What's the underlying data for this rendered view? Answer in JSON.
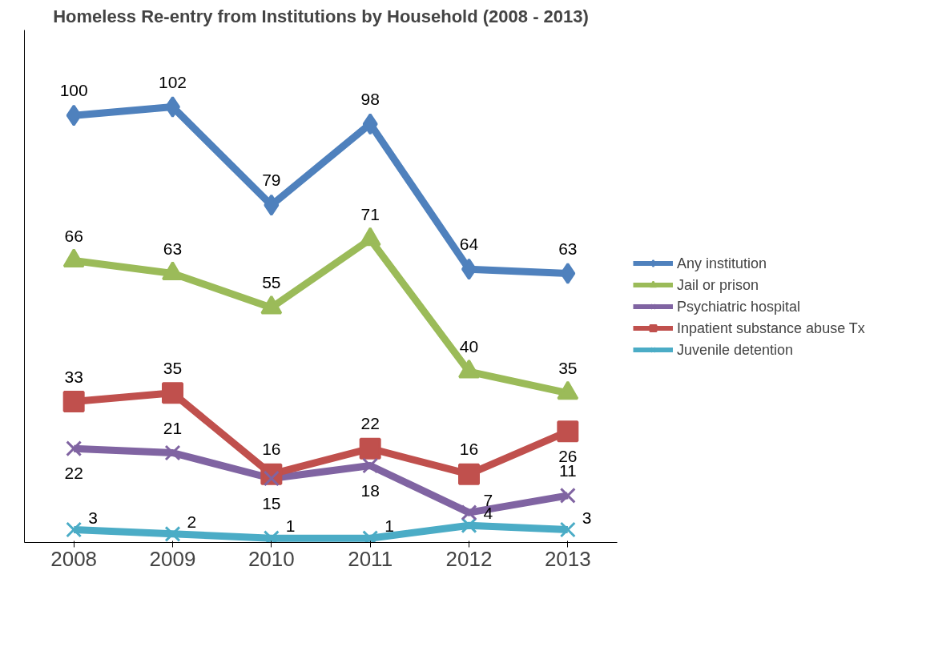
{
  "chart_data": {
    "type": "line",
    "title": "Homeless Re-entry from Institutions by Household (2008 - 2013)",
    "categories": [
      "2008",
      "2009",
      "2010",
      "2011",
      "2012",
      "2013"
    ],
    "series": [
      {
        "name": "Any institution",
        "color": "#4f81bd",
        "marker": "diamond",
        "values": [
          100,
          102,
          79,
          98,
          64,
          63
        ]
      },
      {
        "name": "Jail or prison",
        "color": "#9bbb59",
        "marker": "triangle",
        "values": [
          66,
          63,
          55,
          71,
          40,
          35
        ]
      },
      {
        "name": "Psychiatric hospital",
        "color": "#8064a2",
        "marker": "cross",
        "values": [
          22,
          21,
          15,
          18,
          7,
          11
        ]
      },
      {
        "name": "Inpatient substance abuse Tx",
        "color": "#c0504d",
        "marker": "square",
        "values": [
          33,
          35,
          16,
          22,
          16,
          26
        ]
      },
      {
        "name": "Juvenile detention",
        "color": "#4bacc6",
        "marker": "cross",
        "values": [
          3,
          2,
          1,
          1,
          4,
          3
        ]
      }
    ],
    "ylim": [
      0,
      120
    ],
    "tick_labels": "x",
    "data_labels": true,
    "legend": "right",
    "grid": false,
    "line_style": "solid"
  }
}
